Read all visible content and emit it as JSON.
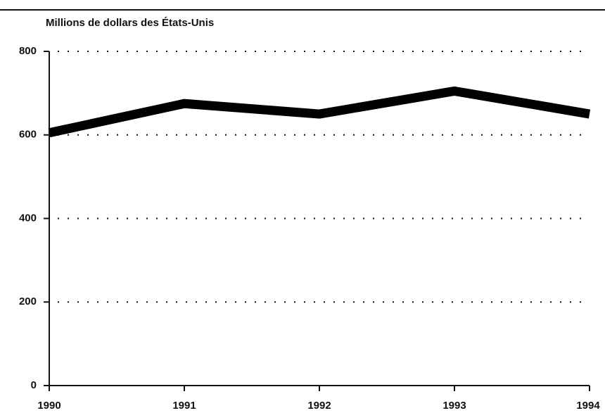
{
  "chart_data": {
    "type": "line",
    "y_label": "Millions de dollars des États-Unis",
    "categories": [
      "1990",
      "1991",
      "1992",
      "1993",
      "1994"
    ],
    "series": [
      {
        "name": null,
        "color": "#000000",
        "values": [
          605,
          675,
          650,
          705,
          650
        ]
      }
    ],
    "ylim": [
      0,
      800
    ],
    "yticks": [
      0,
      200,
      400,
      600,
      800
    ],
    "grid": true
  }
}
